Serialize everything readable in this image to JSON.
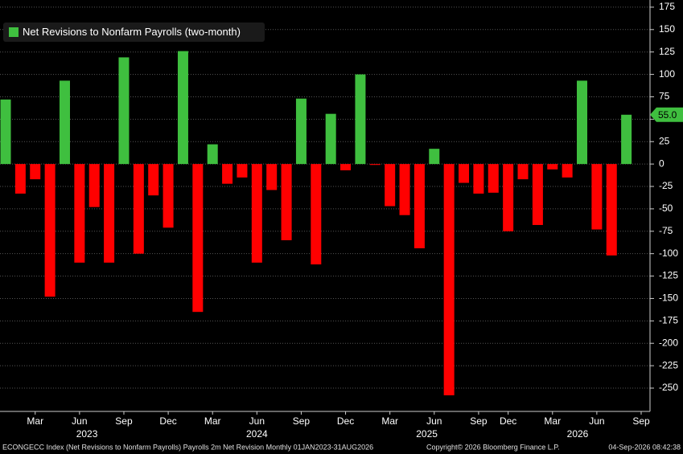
{
  "chart_data": {
    "type": "bar",
    "legend": "Net Revisions to Nonfarm Payrolls (two-month)",
    "categories": [
      null,
      null,
      "Mar",
      null,
      null,
      "Jun",
      null,
      null,
      "Sep",
      null,
      null,
      "Dec",
      null,
      null,
      "Mar",
      null,
      null,
      "Jun",
      null,
      null,
      "Sep",
      null,
      null,
      "Dec",
      null,
      null,
      "Mar",
      null,
      null,
      "Jun",
      null,
      null,
      "Sep",
      null,
      "Dec",
      null,
      null,
      "Mar",
      null,
      null,
      "Jun",
      null,
      null,
      "Sep"
    ],
    "values": [
      72,
      -33,
      -17,
      -148,
      93,
      -110,
      -48,
      -110,
      119,
      -100,
      -35,
      -71,
      126,
      -165,
      22,
      -22,
      -15,
      -110,
      -29,
      -85,
      73,
      -112,
      56,
      -7,
      100,
      -1,
      -47,
      -57,
      -94,
      17,
      -258,
      -21,
      -33,
      -32,
      -75,
      -17,
      -68,
      -6,
      -15,
      93,
      -73,
      -102,
      55,
      null
    ],
    "years": [
      "2023",
      "2024",
      "2025",
      "2026"
    ],
    "positive_color": "#3fbf3f",
    "negative_color": "#ff0000",
    "ylim": [
      -276,
      183
    ],
    "yticks": [
      175,
      150,
      125,
      100,
      75,
      50,
      25,
      0,
      -25,
      -50,
      -75,
      -100,
      -125,
      -150,
      -175,
      -200,
      -225,
      -250
    ],
    "grid": true,
    "last_value_label": "55.0",
    "footer_left": "ECONGECC Index (Net Revisions to Nonfarm Payrolls) Payrolls 2m Net Revision Monthly 01JAN2023-31AUG2026",
    "footer_center": "Copyright© 2026 Bloomberg Finance L.P.",
    "footer_right": "04-Sep-2026 08:42:38"
  }
}
